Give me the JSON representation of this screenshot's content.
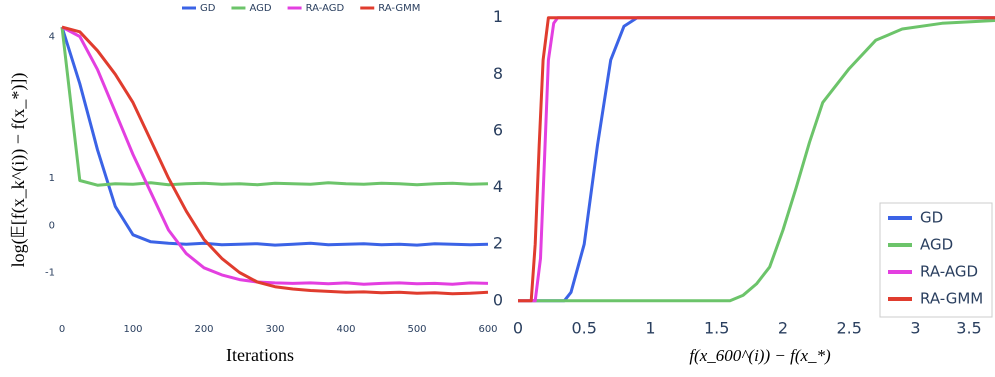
{
  "chart_data": [
    {
      "type": "line",
      "ylabel": "log(𝔼[f(x_k^(i)) − f(x_*)])",
      "xlabel": "Iterations",
      "x": [
        0,
        25,
        50,
        75,
        100,
        125,
        150,
        175,
        200,
        225,
        250,
        275,
        300,
        325,
        350,
        375,
        400,
        425,
        450,
        475,
        500,
        525,
        550,
        575,
        600
      ],
      "xlim": [
        0,
        600
      ],
      "xticks": [
        0,
        100,
        200,
        300,
        400,
        500,
        600
      ],
      "ylim": [
        -1.9,
        4.35
      ],
      "yticks": [
        -1,
        0,
        1,
        4
      ],
      "grid": false,
      "legend": "top",
      "series": [
        {
          "name": "GD",
          "color": "#3b63e6",
          "values": [
            4.2,
            3.0,
            1.6,
            0.4,
            -0.2,
            -0.35,
            -0.38,
            -0.4,
            -0.38,
            -0.41,
            -0.4,
            -0.39,
            -0.42,
            -0.4,
            -0.38,
            -0.41,
            -0.4,
            -0.39,
            -0.41,
            -0.4,
            -0.42,
            -0.39,
            -0.4,
            -0.41,
            -0.4
          ]
        },
        {
          "name": "AGD",
          "color": "#6cc46a",
          "values": [
            4.2,
            0.95,
            0.85,
            0.88,
            0.87,
            0.9,
            0.86,
            0.88,
            0.89,
            0.87,
            0.88,
            0.86,
            0.89,
            0.88,
            0.87,
            0.9,
            0.88,
            0.87,
            0.89,
            0.88,
            0.86,
            0.88,
            0.89,
            0.87,
            0.88
          ]
        },
        {
          "name": "RA-AGD",
          "color": "#e33fe0",
          "values": [
            4.2,
            4.0,
            3.3,
            2.4,
            1.5,
            0.7,
            -0.1,
            -0.6,
            -0.9,
            -1.05,
            -1.15,
            -1.2,
            -1.22,
            -1.23,
            -1.22,
            -1.24,
            -1.22,
            -1.25,
            -1.23,
            -1.22,
            -1.24,
            -1.23,
            -1.25,
            -1.22,
            -1.23
          ]
        },
        {
          "name": "RA-GMM",
          "color": "#e03c2e",
          "values": [
            4.2,
            4.1,
            3.7,
            3.2,
            2.6,
            1.8,
            1.0,
            0.3,
            -0.3,
            -0.7,
            -1.0,
            -1.2,
            -1.3,
            -1.35,
            -1.38,
            -1.4,
            -1.42,
            -1.41,
            -1.43,
            -1.42,
            -1.44,
            -1.43,
            -1.45,
            -1.44,
            -1.42
          ]
        }
      ]
    },
    {
      "type": "line",
      "xlabel": "f(x_600^(i)) − f(x_*)",
      "xlim": [
        -0.06,
        3.6
      ],
      "xticks": [
        0,
        0.5,
        1,
        1.5,
        2,
        2.5,
        3,
        3.5
      ],
      "ylim": [
        -0.05,
        1.02
      ],
      "yticks": [
        0,
        {
          "value": 0.2,
          "label": "2"
        },
        {
          "value": 0.4,
          "label": "4"
        },
        {
          "value": 0.6,
          "label": "6"
        },
        {
          "value": 0.8,
          "label": "8"
        },
        1
      ],
      "grid": false,
      "legend": "bottom-right",
      "series": [
        {
          "name": "GD",
          "color": "#3b63e6",
          "x": [
            0,
            0.35,
            0.4,
            0.5,
            0.6,
            0.7,
            0.8,
            0.9,
            3.6
          ],
          "values": [
            0,
            0,
            0.03,
            0.2,
            0.55,
            0.85,
            0.97,
            1,
            1
          ]
        },
        {
          "name": "AGD",
          "color": "#6cc46a",
          "x": [
            0,
            1.6,
            1.7,
            1.8,
            1.9,
            2.0,
            2.1,
            2.2,
            2.3,
            2.5,
            2.7,
            2.9,
            3.2,
            3.6
          ],
          "values": [
            0,
            0,
            0.02,
            0.06,
            0.12,
            0.25,
            0.4,
            0.56,
            0.7,
            0.82,
            0.92,
            0.96,
            0.98,
            0.99
          ]
        },
        {
          "name": "RA-AGD",
          "color": "#e33fe0",
          "x": [
            0,
            0.13,
            0.17,
            0.2,
            0.23,
            0.27,
            0.3,
            3.6
          ],
          "values": [
            0,
            0,
            0.15,
            0.5,
            0.85,
            0.98,
            1,
            1
          ]
        },
        {
          "name": "RA-GMM",
          "color": "#e03c2e",
          "x": [
            0,
            0.1,
            0.13,
            0.16,
            0.19,
            0.23,
            3.6
          ],
          "values": [
            0,
            0,
            0.2,
            0.55,
            0.85,
            1,
            1
          ]
        }
      ]
    }
  ]
}
